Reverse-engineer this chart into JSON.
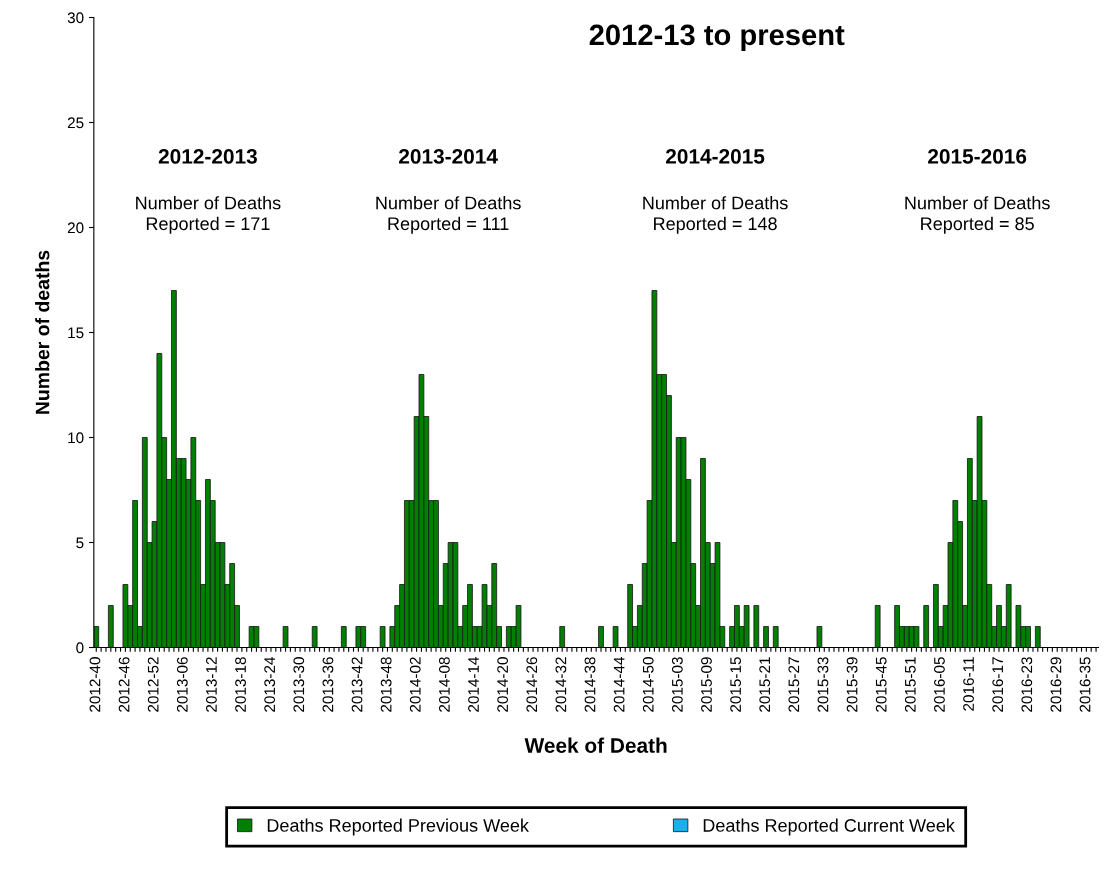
{
  "chart_data": {
    "type": "bar",
    "title": "2012-13 to present",
    "xlabel": "Week of Death",
    "ylabel": "Number of deaths",
    "annotations": [
      "2012-2013",
      "Number of Deaths\nReported = 171",
      "2013-2014",
      "Number of Deaths\nReported = 111",
      "2014-2015",
      "Number of Deaths\nReported = 148",
      "2015-2016",
      "Number of Deaths\nReported = 85"
    ],
    "categories": [
      "2012-40",
      null,
      null,
      null,
      null,
      null,
      "2012-46",
      null,
      null,
      null,
      null,
      null,
      "2012-52",
      null,
      null,
      null,
      null,
      null,
      "2013-06",
      null,
      null,
      null,
      null,
      null,
      "2013-12",
      null,
      null,
      null,
      null,
      null,
      "2013-18",
      null,
      null,
      null,
      null,
      null,
      "2013-24",
      null,
      null,
      null,
      null,
      null,
      "2013-30",
      null,
      null,
      null,
      null,
      null,
      "2013-36",
      null,
      null,
      null,
      null,
      null,
      "2013-42",
      null,
      null,
      null,
      null,
      null,
      "2013-48",
      null,
      null,
      null,
      null,
      null,
      "2014-02",
      null,
      null,
      null,
      null,
      null,
      "2014-08",
      null,
      null,
      null,
      null,
      null,
      "2014-14",
      null,
      null,
      null,
      null,
      null,
      "2014-20",
      null,
      null,
      null,
      null,
      null,
      "2014-26",
      null,
      null,
      null,
      null,
      null,
      "2014-32",
      null,
      null,
      null,
      null,
      null,
      "2014-38",
      null,
      null,
      null,
      null,
      null,
      "2014-44",
      null,
      null,
      null,
      null,
      null,
      "2014-50",
      null,
      null,
      null,
      null,
      null,
      "2015-03",
      null,
      null,
      null,
      null,
      null,
      "2015-09",
      null,
      null,
      null,
      null,
      null,
      "2015-15",
      null,
      null,
      null,
      null,
      null,
      "2015-21",
      null,
      null,
      null,
      null,
      null,
      "2015-27",
      null,
      null,
      null,
      null,
      null,
      "2015-33",
      null,
      null,
      null,
      null,
      null,
      "2015-39",
      null,
      null,
      null,
      null,
      null,
      "2015-45",
      null,
      null,
      null,
      null,
      null,
      "2015-51",
      null,
      null,
      null,
      null,
      null,
      "2016-05",
      null,
      null,
      null,
      null,
      null,
      "2016-11",
      null,
      null,
      null,
      null,
      null,
      "2016-17",
      null,
      null,
      null,
      null,
      null,
      "2016-23",
      null,
      null,
      null,
      null,
      null,
      "2016-29",
      null,
      null,
      null,
      null,
      null,
      "2016-35",
      null,
      null
    ],
    "series": [
      {
        "name": "Deaths Reported Previous Week",
        "color": "#008000",
        "values": [
          1,
          0,
          0,
          2,
          0,
          0,
          3,
          2,
          7,
          1,
          10,
          5,
          6,
          14,
          10,
          8,
          17,
          9,
          9,
          8,
          10,
          7,
          3,
          8,
          7,
          5,
          5,
          3,
          4,
          2,
          0,
          0,
          1,
          1,
          0,
          0,
          0,
          0,
          0,
          1,
          0,
          0,
          0,
          0,
          0,
          1,
          0,
          0,
          0,
          0,
          0,
          1,
          0,
          0,
          1,
          1,
          0,
          0,
          0,
          1,
          0,
          1,
          2,
          3,
          7,
          7,
          11,
          13,
          11,
          7,
          7,
          2,
          4,
          5,
          5,
          1,
          2,
          3,
          1,
          1,
          3,
          2,
          4,
          1,
          0,
          1,
          1,
          2,
          0,
          0,
          0,
          0,
          0,
          0,
          0,
          0,
          1,
          0,
          0,
          0,
          0,
          0,
          0,
          0,
          1,
          0,
          0,
          1,
          0,
          0,
          3,
          1,
          2,
          4,
          7,
          17,
          13,
          13,
          12,
          5,
          10,
          10,
          8,
          4,
          2,
          9,
          5,
          4,
          5,
          1,
          0,
          1,
          2,
          1,
          2,
          0,
          2,
          0,
          1,
          0,
          1,
          0,
          0,
          0,
          0,
          0,
          0,
          0,
          0,
          1,
          0,
          0,
          0,
          0,
          0,
          0,
          0,
          0,
          0,
          0,
          0,
          2,
          0,
          0,
          0,
          2,
          1,
          1,
          1,
          1,
          0,
          2,
          0,
          3,
          1,
          2,
          5,
          7,
          6,
          2,
          9,
          7,
          11,
          7,
          3,
          1,
          2,
          1,
          3,
          0,
          2,
          1,
          1,
          0,
          1,
          0,
          0,
          0,
          0,
          0,
          0,
          0,
          0,
          0,
          0,
          0,
          0
        ]
      },
      {
        "name": "Deaths Reported Current Week",
        "color": "#1ab0f0",
        "values": [
          0,
          0,
          0,
          0,
          0,
          0,
          0,
          0,
          0,
          0,
          0,
          0,
          0,
          0,
          0,
          0,
          0,
          0,
          0,
          0,
          0,
          0,
          0,
          0,
          0,
          0,
          0,
          0,
          0,
          0,
          0,
          0,
          0,
          0,
          0,
          0,
          0,
          0,
          0,
          0,
          0,
          0,
          0,
          0,
          0,
          0,
          0,
          0,
          0,
          0,
          0,
          0,
          0,
          0,
          0,
          0,
          0,
          0,
          0,
          0,
          0,
          0,
          0,
          0,
          0,
          0,
          0,
          0,
          0,
          0,
          0,
          0,
          0,
          0,
          0,
          0,
          0,
          0,
          0,
          0,
          0,
          0,
          0,
          0,
          0,
          0,
          0,
          0,
          0,
          0,
          0,
          0,
          0,
          0,
          0,
          0,
          0,
          0,
          0,
          0,
          0,
          0,
          0,
          0,
          0,
          0,
          0,
          0,
          0,
          0,
          0,
          0,
          0,
          0,
          0,
          0,
          0,
          0,
          0,
          0,
          0,
          0,
          0,
          0,
          0,
          0,
          0,
          0,
          0,
          0,
          0,
          0,
          0,
          0,
          0,
          0,
          0,
          0,
          0,
          0,
          0,
          0,
          0,
          0,
          0,
          0,
          0,
          0,
          0,
          0,
          0,
          0,
          0,
          0,
          0,
          0,
          0,
          0,
          0,
          0,
          0,
          0,
          0,
          0,
          0,
          0,
          0,
          0,
          0,
          0,
          0,
          0,
          0,
          0,
          0,
          0,
          0,
          0,
          0,
          0,
          0,
          0,
          0,
          0,
          0,
          0,
          0,
          0,
          0,
          0,
          0,
          0,
          0,
          0,
          0,
          0,
          0,
          0,
          0,
          0,
          0,
          0,
          0,
          0,
          0,
          0,
          0
        ]
      }
    ],
    "ylim": [
      0,
      30
    ],
    "yticks": [
      0,
      5,
      10,
      15,
      20,
      25,
      30
    ],
    "grid": false,
    "legend": "bottom"
  }
}
